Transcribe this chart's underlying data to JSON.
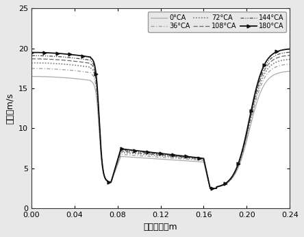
{
  "xlabel": "轴向长度／m",
  "ylabel": "速度／m/s",
  "xlim": [
    0.0,
    0.24
  ],
  "ylim": [
    0,
    25
  ],
  "xticks": [
    0.0,
    0.04,
    0.08,
    0.12,
    0.16,
    0.2,
    0.24
  ],
  "yticks": [
    0,
    5,
    10,
    15,
    20,
    25
  ],
  "series": [
    {
      "label": "0°CA",
      "linestyle": "-",
      "color": "#aaaaaa",
      "linewidth": 0.9,
      "dashes": []
    },
    {
      "label": "36°CA",
      "linestyle": "-.",
      "color": "#999999",
      "linewidth": 0.9,
      "dashes": []
    },
    {
      "label": "72°CA",
      "linestyle": ":",
      "color": "#888888",
      "linewidth": 1.3,
      "dashes": []
    },
    {
      "label": "108°CA",
      "linestyle": "--",
      "color": "#666666",
      "linewidth": 0.9,
      "dashes": []
    },
    {
      "label": "144°CA",
      "linestyle": "-.",
      "color": "#444444",
      "linewidth": 0.9,
      "dashes": []
    },
    {
      "label": "180°CA",
      "linestyle": "-",
      "color": "#111111",
      "linewidth": 1.3,
      "dashes": [],
      "marker": true
    }
  ],
  "params": [
    [
      16.5,
      6.5,
      5.8,
      3.3,
      17.2
    ],
    [
      17.5,
      6.75,
      6.0,
      3.3,
      18.1
    ],
    [
      18.2,
      7.0,
      6.1,
      3.3,
      18.7
    ],
    [
      18.7,
      7.15,
      6.15,
      3.3,
      19.2
    ],
    [
      19.1,
      7.3,
      6.2,
      3.3,
      19.6
    ],
    [
      19.5,
      7.45,
      6.25,
      3.3,
      20.0
    ]
  ],
  "background_color": "#e8e8e8",
  "plot_bg": "#ffffff",
  "legend_fontsize": 7,
  "axis_fontsize": 9,
  "tick_fontsize": 8
}
